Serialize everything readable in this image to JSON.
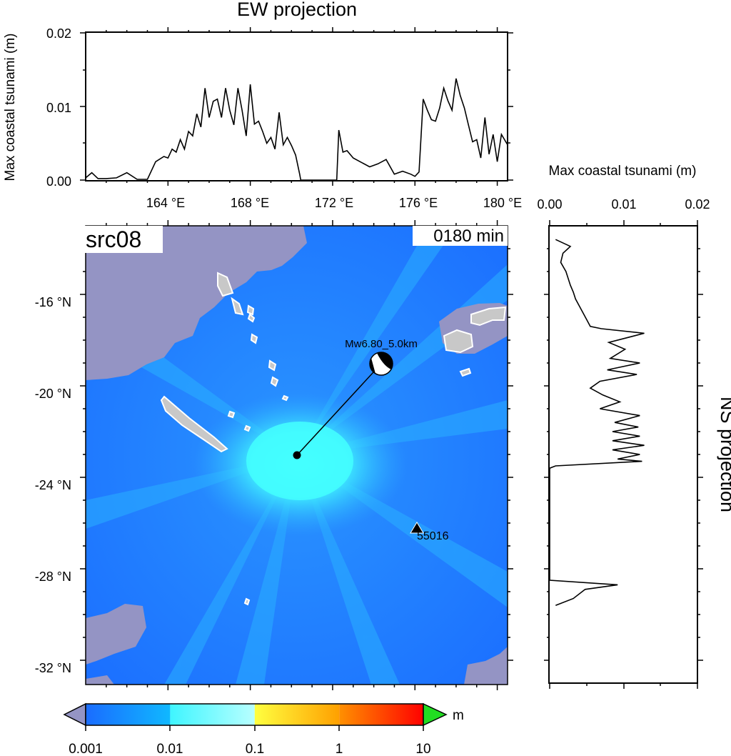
{
  "ew_panel": {
    "title": "EW projection",
    "ylabel": "Max coastal tsunami (m)",
    "yticks": [
      "0.00",
      "0.01",
      "0.02"
    ],
    "xticks": [
      "164 °E",
      "168 °E",
      "172 °E",
      "176 °E",
      "180 °E"
    ]
  },
  "ns_panel": {
    "title": "NS projection",
    "xlabel": "Max coastal tsunami (m)",
    "xticks": [
      "0.00",
      "0.01",
      "0.02"
    ]
  },
  "map": {
    "source_label": "src08",
    "time_label": "0180 min",
    "event_label": "Mw6.80_5.0km",
    "station_label": "55016",
    "lat_ticks": [
      "-16 °N",
      "-20 °N",
      "-24 °N",
      "-28 °N",
      "-32 °N"
    ],
    "colors": {
      "land": "#9494c4",
      "island": "#c8c8c8",
      "ocean_low": "#1a6cff",
      "ocean_mid": "#27a8ff",
      "ocean_high": "#3ff5ff"
    }
  },
  "colorbar": {
    "unit": "m",
    "ticks": [
      "0.001",
      "0.01",
      "0.1",
      "1",
      "10"
    ],
    "colors": {
      "under": "#9494c4",
      "over": "#22dd22",
      "seg1_start": "#1a6cff",
      "seg1_end": "#10b8ff",
      "seg2_start": "#3ff5ff",
      "seg2_end": "#b8ffff",
      "seg3_start": "#ffff40",
      "seg3_end": "#ffa000",
      "seg4_start": "#ff9000",
      "seg4_end": "#ff0000",
      "seg5_start": "#ff2020",
      "seg5_end": "#ee0000"
    }
  },
  "chart_data": [
    {
      "type": "line",
      "title": "EW projection",
      "xlabel": "",
      "ylabel": "Max coastal tsunami (m)",
      "xlim": [
        160,
        180.5
      ],
      "ylim": [
        0,
        0.02
      ],
      "x": [
        160.0,
        160.3,
        160.6,
        161.0,
        161.5,
        162.0,
        162.5,
        163.0,
        163.4,
        163.8,
        164.0,
        164.2,
        164.4,
        164.6,
        164.8,
        165.0,
        165.2,
        165.4,
        165.6,
        165.8,
        166.0,
        166.2,
        166.4,
        166.6,
        166.8,
        167.0,
        167.2,
        167.4,
        167.6,
        167.8,
        168.0,
        168.2,
        168.4,
        168.6,
        168.8,
        169.0,
        169.2,
        169.4,
        169.6,
        169.8,
        170.0,
        170.2,
        170.4,
        170.45,
        172.2,
        172.3,
        172.5,
        172.7,
        173.0,
        173.4,
        173.8,
        174.2,
        174.6,
        175.0,
        175.4,
        175.8,
        176.0,
        176.2,
        176.4,
        176.6,
        176.8,
        177.0,
        177.2,
        177.4,
        177.6,
        177.8,
        178.0,
        178.2,
        178.4,
        178.6,
        178.8,
        179.0,
        179.2,
        179.4,
        179.6,
        179.8,
        180.0,
        180.2,
        180.5
      ],
      "values": [
        0.0003,
        0.001,
        0.0002,
        0.0002,
        0.0003,
        0.001,
        0.0001,
        0.0001,
        0.0025,
        0.0032,
        0.003,
        0.0042,
        0.0038,
        0.0055,
        0.0042,
        0.0066,
        0.006,
        0.009,
        0.0072,
        0.0125,
        0.0085,
        0.0107,
        0.011,
        0.0085,
        0.0125,
        0.0095,
        0.0075,
        0.0125,
        0.0095,
        0.006,
        0.013,
        0.0076,
        0.008,
        0.0066,
        0.005,
        0.0058,
        0.0042,
        0.0092,
        0.0048,
        0.0058,
        0.0047,
        0.0034,
        0.0008,
        0.0,
        0.0,
        0.0068,
        0.0038,
        0.004,
        0.003,
        0.0024,
        0.0018,
        0.0022,
        0.0028,
        0.0008,
        0.0012,
        0.0008,
        0.0005,
        0.0011,
        0.011,
        0.0095,
        0.0082,
        0.008,
        0.0098,
        0.0125,
        0.0108,
        0.0095,
        0.0138,
        0.0115,
        0.0098,
        0.0075,
        0.0052,
        0.0055,
        0.003,
        0.0085,
        0.0035,
        0.0062,
        0.0025,
        0.0062,
        0.0048
      ]
    },
    {
      "type": "line",
      "title": "NS projection",
      "xlabel": "Max coastal tsunami (m)",
      "ylabel": "",
      "xlim": [
        0,
        0.02
      ],
      "ylim": [
        -33,
        -13
      ],
      "x": [
        0.0008,
        0.0028,
        0.0018,
        0.0015,
        0.0022,
        0.0025,
        0.0028,
        0.0032,
        0.0035,
        0.004,
        0.0045,
        0.005,
        0.0055,
        0.007,
        0.0128,
        0.008,
        0.0102,
        0.0082,
        0.0122,
        0.0078,
        0.0118,
        0.0068,
        0.0055,
        0.0072,
        0.0095,
        0.0068,
        0.0122,
        0.0088,
        0.012,
        0.0085,
        0.0122,
        0.0085,
        0.0128,
        0.0085,
        0.0122,
        0.0092,
        0.0125,
        0.0008,
        0.0,
        0.0,
        0.0092,
        0.0048,
        0.0032,
        0.0008
      ],
      "y": [
        -13.6,
        -13.9,
        -14.2,
        -14.6,
        -15.0,
        -15.3,
        -15.6,
        -15.9,
        -16.2,
        -16.5,
        -16.8,
        -17.1,
        -17.4,
        -17.5,
        -17.7,
        -18.1,
        -18.4,
        -18.8,
        -19.0,
        -19.3,
        -19.5,
        -19.8,
        -20.1,
        -20.4,
        -20.7,
        -21.0,
        -21.3,
        -21.6,
        -21.8,
        -22.0,
        -22.2,
        -22.4,
        -22.6,
        -22.8,
        -23.0,
        -23.2,
        -23.3,
        -23.5,
        -23.6,
        -28.5,
        -28.7,
        -28.9,
        -29.3,
        -29.6
      ]
    }
  ]
}
